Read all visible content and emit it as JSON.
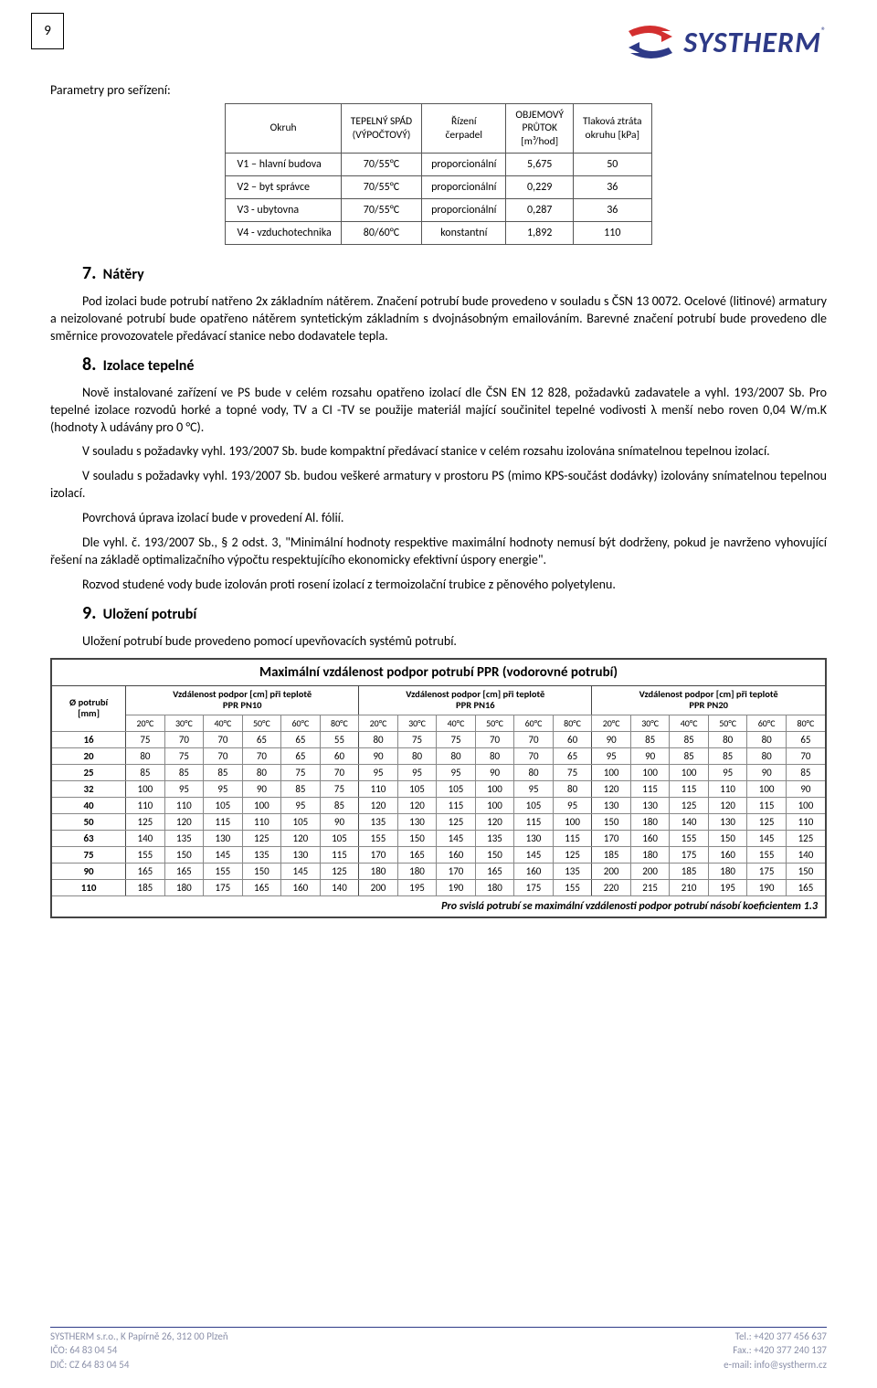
{
  "page_number": "9",
  "logo": {
    "brand": "SYSTHERM",
    "arrow_top_color": "#d32f2f",
    "arrow_bottom_color": "#2e3a87"
  },
  "intro_label": "Parametry pro seřízení:",
  "param_table": {
    "headers": {
      "circuit": "Okruh",
      "slope": "TEPELNÝ SPÁD\n(VÝPOČTOVÝ)",
      "pump": "Řízení\nčerpadel",
      "flow": "OBJEMOVÝ\nPRŮTOK\n[m³/hod]",
      "drop": "Tlaková ztráta\nokruhu [kPa]"
    },
    "rows": [
      {
        "c": "V1 – hlavní budova",
        "s": "70/55°C",
        "p": "proporcionální",
        "f": "5,675",
        "d": "50"
      },
      {
        "c": "V2 – byt správce",
        "s": "70/55°C",
        "p": "proporcionální",
        "f": "0,229",
        "d": "36"
      },
      {
        "c": "V3 - ubytovna",
        "s": "70/55°C",
        "p": "proporcionální",
        "f": "0,287",
        "d": "36"
      },
      {
        "c": "V4 - vzduchotechnika",
        "s": "80/60°C",
        "p": "konstantní",
        "f": "1,892",
        "d": "110"
      }
    ]
  },
  "sec7": {
    "num": "7.",
    "title": "Nátěry",
    "p1": "Pod izolaci bude potrubí natřeno 2x základním nátěrem. Značení potrubí bude provedeno v souladu s ČSN 13 0072. Ocelové (litinové) armatury a neizolované potrubí bude opatřeno nátěrem syntetickým základním s dvojnásobným emailováním. Barevné značení potrubí bude provedeno dle směrnice provozovatele předávací stanice nebo dodavatele tepla."
  },
  "sec8": {
    "num": "8.",
    "title": "Izolace tepelné",
    "p1": "Nově instalované zařízení ve PS bude v celém rozsahu opatřeno izolací dle ČSN EN 12 828, požadavků zadavatele a vyhl. 193/2007 Sb. Pro tepelné izolace rozvodů horké a topné vody, TV a CI -TV se použije materiál mající součinitel tepelné vodivosti λ menší nebo roven 0,04 W/m.K (hodnoty λ udávány pro 0 °C).",
    "p2": "V souladu s požadavky vyhl. 193/2007 Sb. bude kompaktní předávací stanice v celém rozsahu izolována snímatelnou tepelnou izolací.",
    "p3": "V souladu s požadavky vyhl. 193/2007 Sb. budou veškeré armatury v prostoru PS (mimo KPS-součást dodávky) izolovány snímatelnou tepelnou izolací.",
    "p4": "Povrchová úprava izolací bude v provedení Al. fólií.",
    "p5": "Dle vyhl. č. 193/2007 Sb., § 2 odst. 3, \"Minimální hodnoty respektive maximální hodnoty nemusí být dodrženy, pokud je navrženo vyhovující řešení na základě optimalizačního výpočtu respektujícího ekonomicky efektivní úspory energie\".",
    "p6": "Rozvod studené vody bude izolován proti rosení izolací z termoizolační trubice z pěnového polyetylenu."
  },
  "sec9": {
    "num": "9.",
    "title": "Uložení potrubí",
    "p1": "Uložení potrubí bude provedeno pomocí upevňovacích systémů potrubí."
  },
  "pipe_table": {
    "title": "Maximální vzdálenost podpor potrubí PPR (vodorovné potrubí)",
    "rowhdr": "Ø potrubí\n[mm]",
    "groups": [
      "Vzdálenost podpor [cm] při teplotě\nPPR PN10",
      "Vzdálenost podpor [cm] při teplotě\nPPR PN16",
      "Vzdálenost podpor [cm] při teplotě\nPPR PN20"
    ],
    "temps": [
      "20°C",
      "30°C",
      "40°C",
      "50°C",
      "60°C",
      "80°C"
    ],
    "diameters": [
      "16",
      "20",
      "25",
      "32",
      "40",
      "50",
      "63",
      "75",
      "90",
      "110"
    ],
    "pn10": [
      [
        75,
        70,
        70,
        65,
        65,
        55
      ],
      [
        80,
        75,
        70,
        70,
        65,
        60
      ],
      [
        85,
        85,
        85,
        80,
        75,
        70
      ],
      [
        100,
        95,
        95,
        90,
        85,
        75
      ],
      [
        110,
        110,
        105,
        100,
        95,
        85
      ],
      [
        125,
        120,
        115,
        110,
        105,
        90
      ],
      [
        140,
        135,
        130,
        125,
        120,
        105
      ],
      [
        155,
        150,
        145,
        135,
        130,
        115
      ],
      [
        165,
        165,
        155,
        150,
        145,
        125
      ],
      [
        185,
        180,
        175,
        165,
        160,
        140
      ]
    ],
    "pn16": [
      [
        80,
        75,
        75,
        70,
        70,
        60
      ],
      [
        90,
        80,
        80,
        80,
        70,
        65
      ],
      [
        95,
        95,
        95,
        90,
        80,
        75
      ],
      [
        110,
        105,
        105,
        100,
        95,
        80
      ],
      [
        120,
        120,
        115,
        100,
        105,
        95
      ],
      [
        135,
        130,
        125,
        120,
        115,
        100
      ],
      [
        155,
        150,
        145,
        135,
        130,
        115
      ],
      [
        170,
        165,
        160,
        150,
        145,
        125
      ],
      [
        180,
        180,
        170,
        165,
        160,
        135
      ],
      [
        200,
        195,
        190,
        180,
        175,
        155
      ]
    ],
    "pn20": [
      [
        90,
        85,
        85,
        80,
        80,
        65
      ],
      [
        95,
        90,
        85,
        85,
        80,
        70
      ],
      [
        100,
        100,
        100,
        95,
        90,
        85
      ],
      [
        120,
        115,
        115,
        110,
        100,
        90
      ],
      [
        130,
        130,
        125,
        120,
        115,
        100
      ],
      [
        150,
        180,
        140,
        130,
        125,
        110
      ],
      [
        170,
        160,
        155,
        150,
        145,
        125
      ],
      [
        185,
        180,
        175,
        160,
        155,
        140
      ],
      [
        200,
        200,
        185,
        180,
        175,
        150
      ],
      [
        220,
        215,
        210,
        195,
        190,
        165
      ]
    ],
    "footer": "Pro svislá potrubí se maximální vzdálenosti podpor potrubí násobí koeficientem 1.3"
  },
  "footer": {
    "l1": "SYSTHERM s.r.o., K Papírně 26, 312 00 Plzeň",
    "l2": "IČO: 64 83 04 54",
    "l3": "DIČ: CZ 64 83 04 54",
    "r1": "Tel.: +420 377 456 637",
    "r2": "Fax.: +420 377 240 137",
    "r3": "e-mail: info@systherm.cz"
  }
}
